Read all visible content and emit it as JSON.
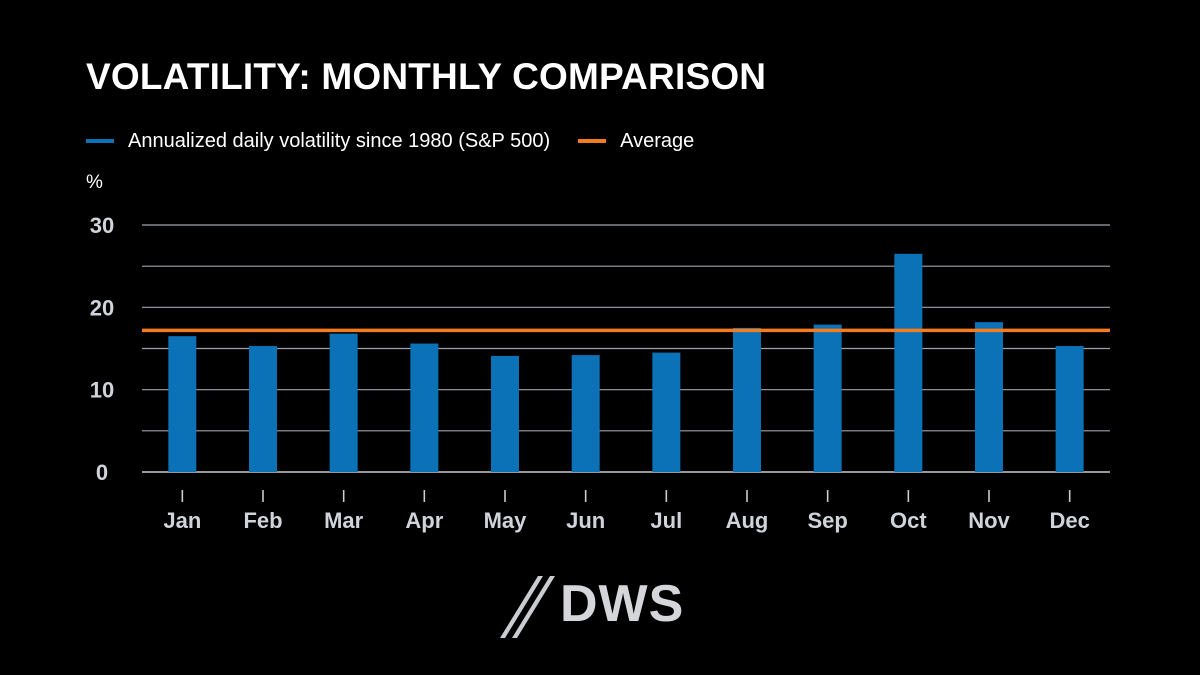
{
  "title": "VOLATILITY: MONTHLY COMPARISON",
  "logo_text": "DWS",
  "legend": [
    {
      "label": "Annualized daily volatility since 1980 (S&P 500)",
      "color": "#0c72b8"
    },
    {
      "label": "Average",
      "color": "#f47c20"
    }
  ],
  "chart_data": {
    "type": "bar",
    "categories": [
      "Jan",
      "Feb",
      "Mar",
      "Apr",
      "May",
      "Jun",
      "Jul",
      "Aug",
      "Sep",
      "Oct",
      "Nov",
      "Dec"
    ],
    "series": [
      {
        "name": "Annualized daily volatility since 1980 (S&P 500)",
        "values": [
          16.5,
          15.3,
          16.8,
          15.6,
          14.1,
          14.2,
          14.5,
          17.5,
          17.9,
          26.5,
          18.2,
          15.3
        ],
        "color": "#0c72b8"
      }
    ],
    "average": {
      "name": "Average",
      "value": 17.2,
      "color": "#f47c20"
    },
    "ylabel": "%",
    "yticks": [
      0,
      10,
      20,
      30
    ],
    "ylim": [
      0,
      30
    ],
    "grid": true,
    "grid_step": 5,
    "legend_position": "top-left"
  }
}
